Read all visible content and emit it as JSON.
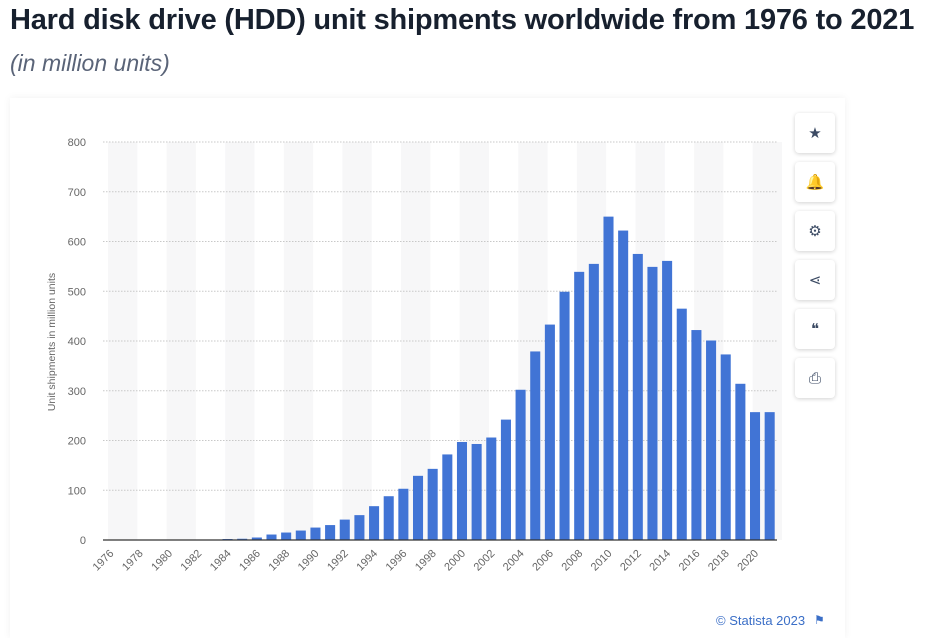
{
  "title": "Hard disk drive (HDD) unit shipments worldwide from 1976 to 2021",
  "subtitle": "(in million units)",
  "credit": "© Statista 2023",
  "toolbar": [
    {
      "icon": "star-icon",
      "glyph": "★"
    },
    {
      "icon": "bell-icon",
      "glyph": "🔔"
    },
    {
      "icon": "gear-icon",
      "glyph": "⚙"
    },
    {
      "icon": "share-icon",
      "glyph": "⋖"
    },
    {
      "icon": "quote-icon",
      "glyph": "❝"
    },
    {
      "icon": "print-icon",
      "glyph": "⎙"
    }
  ],
  "chart_data": {
    "type": "bar",
    "title": "",
    "xlabel": "",
    "ylabel": "Unit shipments in million units",
    "ylim": [
      0,
      800
    ],
    "yticks": [
      0,
      100,
      200,
      300,
      400,
      500,
      600,
      700,
      800
    ],
    "grid": true,
    "bar_color": "#4174d5",
    "categories": [
      "1976",
      "1977",
      "1978",
      "1979",
      "1980",
      "1981",
      "1982",
      "1983",
      "1984",
      "1985",
      "1986",
      "1987",
      "1988",
      "1989",
      "1990",
      "1991",
      "1992",
      "1993",
      "1994",
      "1995",
      "1996",
      "1997",
      "1998",
      "1999",
      "2000",
      "2001",
      "2002",
      "2003",
      "2004",
      "2005",
      "2006",
      "2007",
      "2008",
      "2009",
      "2010",
      "2011",
      "2012",
      "2013",
      "2014",
      "2015",
      "2016",
      "2017",
      "2018",
      "2019",
      "2020",
      "2021"
    ],
    "xtick_labels": [
      "1976",
      "1978",
      "1980",
      "1982",
      "1984",
      "1986",
      "1988",
      "1990",
      "1992",
      "1994",
      "1996",
      "1998",
      "2000",
      "2002",
      "2004",
      "2006",
      "2008",
      "2010",
      "2012",
      "2014",
      "2016",
      "2018",
      "2020"
    ],
    "values": [
      0.1,
      0.1,
      0.2,
      0.3,
      0.4,
      0.5,
      0.6,
      1,
      2,
      2.5,
      5,
      11,
      15,
      19,
      25,
      30,
      41,
      50,
      68,
      88,
      103,
      129,
      143,
      172,
      197,
      193,
      206,
      242,
      302,
      379,
      433,
      499,
      539,
      555,
      650,
      622,
      575,
      549,
      561,
      465,
      422,
      401,
      373,
      314,
      257,
      257
    ]
  }
}
